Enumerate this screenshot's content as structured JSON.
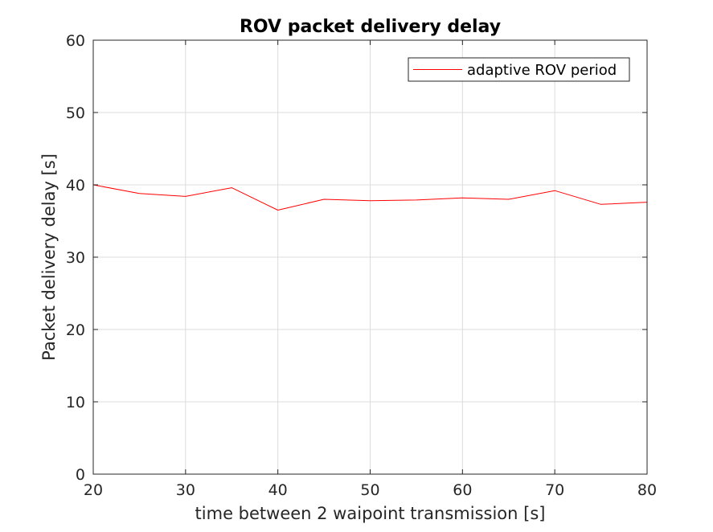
{
  "chart_data": {
    "type": "line",
    "title": "ROV packet delivery delay",
    "xlabel": "time between 2 waipoint transmission [s]",
    "ylabel": "Packet delivery delay [s]",
    "xlim": [
      20,
      80
    ],
    "ylim": [
      0,
      60
    ],
    "xticks": [
      20,
      30,
      40,
      50,
      60,
      70,
      80
    ],
    "yticks": [
      0,
      10,
      20,
      30,
      40,
      50,
      60
    ],
    "grid": true,
    "legend_position": "top-right",
    "series": [
      {
        "name": "adaptive ROV period",
        "color": "#ff0000",
        "x": [
          20,
          25,
          30,
          35,
          40,
          45,
          50,
          55,
          60,
          65,
          70,
          75,
          80
        ],
        "y": [
          40.0,
          38.8,
          38.4,
          39.6,
          36.5,
          38.0,
          37.8,
          37.9,
          38.2,
          38.0,
          39.2,
          37.3,
          37.6
        ]
      }
    ]
  }
}
